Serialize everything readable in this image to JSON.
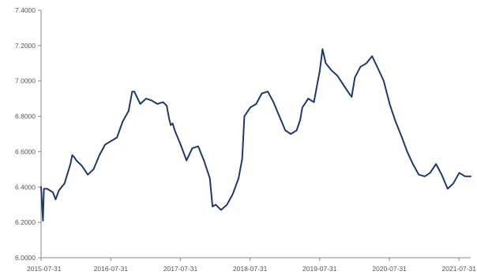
{
  "chart_data": {
    "type": "line",
    "title": "",
    "xlabel": "",
    "ylabel": "",
    "ylim": [
      6.0,
      7.4
    ],
    "xlim": [
      "2015-07-31",
      "2021-09-30"
    ],
    "y_ticks": [
      "6.0000",
      "6.2000",
      "6.4000",
      "6.6000",
      "6.8000",
      "7.0000",
      "7.2000",
      "7.4000"
    ],
    "x_ticks": [
      "2015-07-31",
      "2016-07-31",
      "2017-07-31",
      "2018-07-31",
      "2019-07-31",
      "2020-07-31",
      "2021-07-31"
    ],
    "grid": false,
    "legend": "none",
    "colors": {
      "line": "#1f3a68",
      "axis": "#888888"
    },
    "series": [
      {
        "x": [
          "2015-07-31",
          "2015-08-10",
          "2015-08-15",
          "2015-09-01",
          "2015-10-01",
          "2015-10-15",
          "2015-11-01",
          "2015-12-01",
          "2016-01-01",
          "2016-01-10",
          "2016-01-20",
          "2016-02-01",
          "2016-03-01",
          "2016-04-01",
          "2016-05-01",
          "2016-06-01",
          "2016-07-01",
          "2016-08-01",
          "2016-09-01",
          "2016-10-01",
          "2016-11-01",
          "2016-11-20",
          "2016-12-01",
          "2017-01-01",
          "2017-02-01",
          "2017-03-01",
          "2017-04-01",
          "2017-05-01",
          "2017-05-20",
          "2017-06-01",
          "2017-06-10",
          "2017-06-20",
          "2017-07-01",
          "2017-08-01",
          "2017-09-01",
          "2017-10-01",
          "2017-11-01",
          "2017-12-01",
          "2018-01-01",
          "2018-01-15",
          "2018-02-01",
          "2018-03-01",
          "2018-04-01",
          "2018-05-01",
          "2018-06-01",
          "2018-06-20",
          "2018-07-01",
          "2018-08-01",
          "2018-09-01",
          "2018-10-01",
          "2018-11-01",
          "2018-12-01",
          "2019-01-01",
          "2019-02-01",
          "2019-03-01",
          "2019-04-01",
          "2019-04-20",
          "2019-05-01",
          "2019-05-20",
          "2019-06-01",
          "2019-07-01",
          "2019-08-01",
          "2019-08-15",
          "2019-09-01",
          "2019-10-01",
          "2019-11-01",
          "2019-12-01",
          "2020-01-01",
          "2020-01-15",
          "2020-02-01",
          "2020-03-01",
          "2020-04-01",
          "2020-05-01",
          "2020-06-01",
          "2020-07-01",
          "2020-08-01",
          "2020-09-01",
          "2020-10-01",
          "2020-11-01",
          "2020-12-01",
          "2021-01-01",
          "2021-02-01",
          "2021-03-01",
          "2021-04-01",
          "2021-05-01",
          "2021-06-01",
          "2021-07-01",
          "2021-08-01",
          "2021-09-01",
          "2021-09-30"
        ],
        "values": [
          6.4,
          6.21,
          6.39,
          6.39,
          6.37,
          6.33,
          6.38,
          6.42,
          6.53,
          6.58,
          6.57,
          6.55,
          6.52,
          6.47,
          6.5,
          6.58,
          6.64,
          6.66,
          6.68,
          6.77,
          6.83,
          6.94,
          6.94,
          6.87,
          6.9,
          6.89,
          6.87,
          6.88,
          6.86,
          6.79,
          6.75,
          6.76,
          6.72,
          6.64,
          6.55,
          6.62,
          6.63,
          6.55,
          6.45,
          6.29,
          6.3,
          6.27,
          6.3,
          6.36,
          6.45,
          6.56,
          6.8,
          6.85,
          6.87,
          6.93,
          6.94,
          6.88,
          6.8,
          6.72,
          6.7,
          6.72,
          6.78,
          6.85,
          6.88,
          6.9,
          6.88,
          7.06,
          7.18,
          7.1,
          7.06,
          7.03,
          6.98,
          6.93,
          6.91,
          7.02,
          7.08,
          7.1,
          7.14,
          7.07,
          7.0,
          6.87,
          6.77,
          6.69,
          6.6,
          6.53,
          6.47,
          6.46,
          6.48,
          6.53,
          6.47,
          6.39,
          6.42,
          6.48,
          6.46,
          6.46
        ]
      }
    ]
  }
}
